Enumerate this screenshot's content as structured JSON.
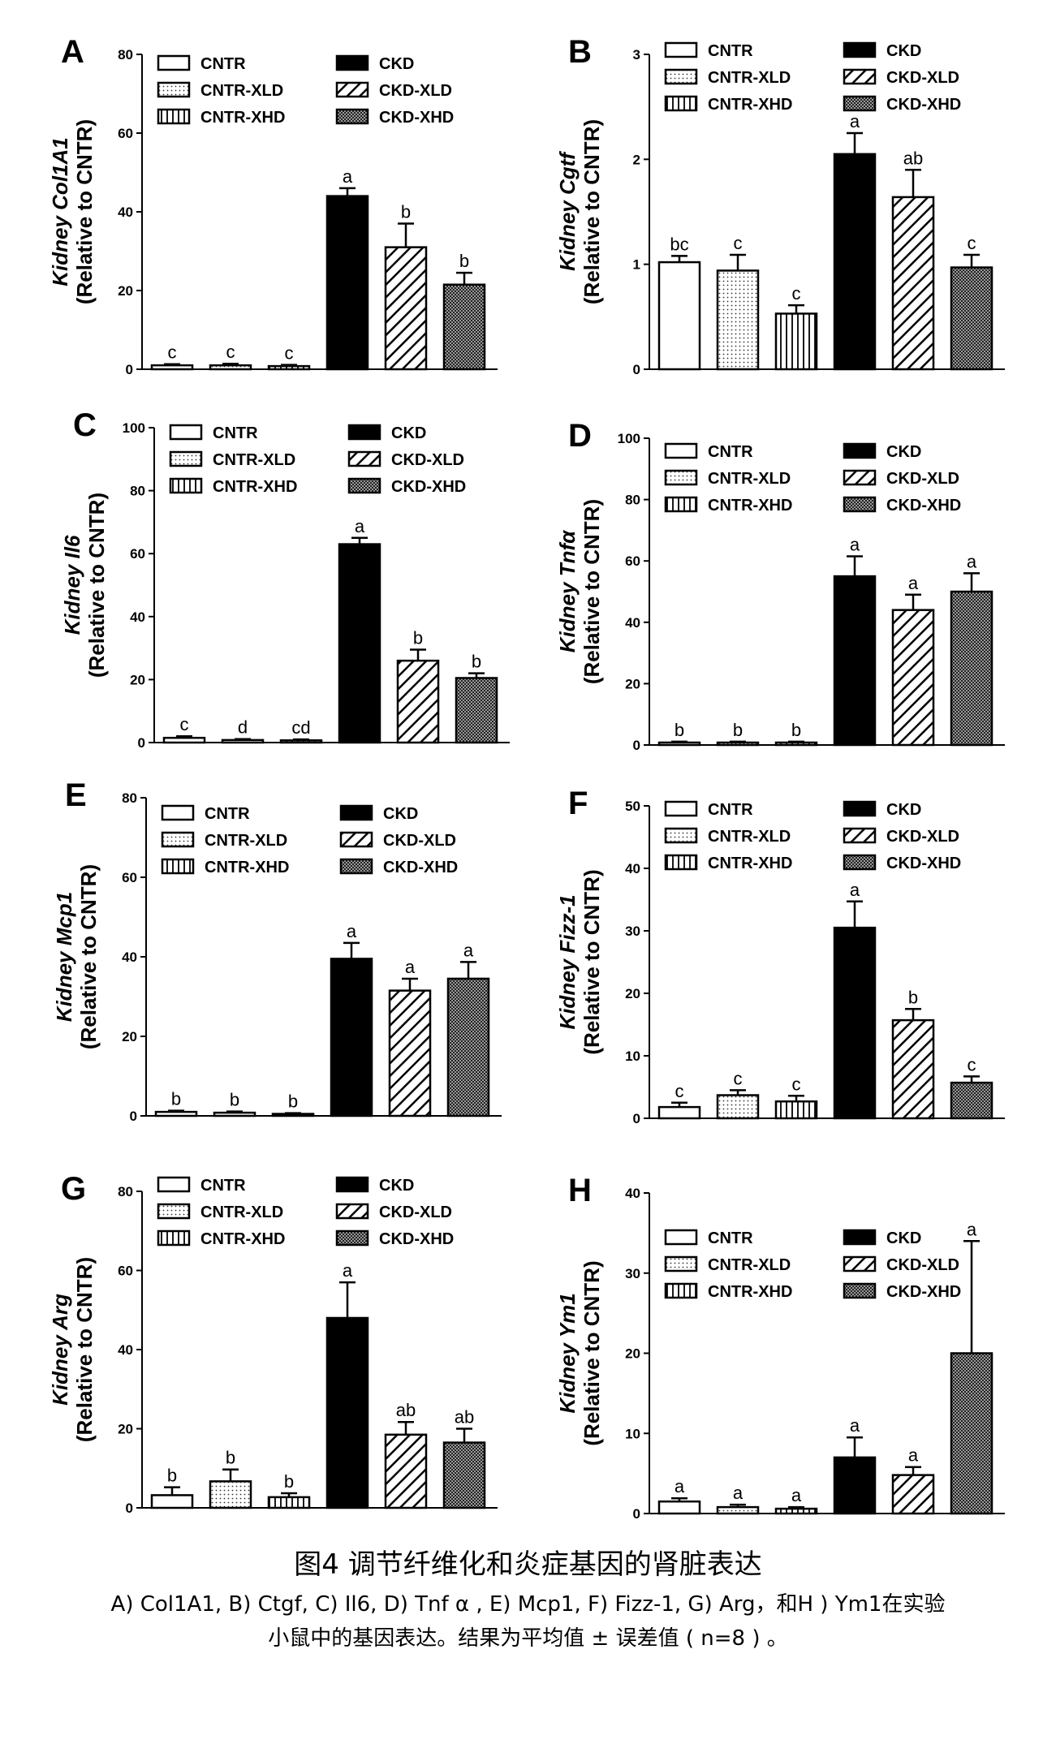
{
  "legend": {
    "series": [
      "CNTR",
      "CNTR-XLD",
      "CNTR-XHD",
      "CKD",
      "CKD-XLD",
      "CKD-XHD"
    ]
  },
  "caption": {
    "title": "图4 调节纤维化和炎症基因的肾脏表达",
    "line1": "A) Col1A1, B) Ctgf, C) Il6, D) Tnf α , E) Mcp1, F) Fizz-1, G) Arg，和H ) Ym1在实验",
    "line2": "小鼠中的基因表达。结果为平均值 ± 误差值 ( n=8 ) 。"
  },
  "chart_data": [
    {
      "type": "bar",
      "panel": "A",
      "ylabel_gene": "Col1A1",
      "ylabel": "(Relative to CNTR)",
      "ylim": [
        0,
        80
      ],
      "yticks": [
        0,
        20,
        40,
        60,
        80
      ],
      "categories": [
        "CNTR",
        "CNTR-XLD",
        "CNTR-XHD",
        "CKD",
        "CKD-XLD",
        "CKD-XHD"
      ],
      "values": [
        1,
        1,
        0.8,
        44,
        31,
        21.5
      ],
      "errors": [
        0.3,
        0.4,
        0.3,
        2,
        6,
        3
      ],
      "letters": [
        "c",
        "c",
        "c",
        "a",
        "b",
        "b"
      ]
    },
    {
      "type": "bar",
      "panel": "B",
      "ylabel_gene": "Cgtf",
      "ylabel": "(Relative to CNTR)",
      "ylim": [
        0,
        3
      ],
      "yticks": [
        0,
        1,
        2,
        3
      ],
      "categories": [
        "CNTR",
        "CNTR-XLD",
        "CNTR-XHD",
        "CKD",
        "CKD-XLD",
        "CKD-XHD"
      ],
      "values": [
        1.02,
        0.94,
        0.53,
        2.05,
        1.64,
        0.97
      ],
      "errors": [
        0.06,
        0.15,
        0.08,
        0.2,
        0.26,
        0.12
      ],
      "letters": [
        "bc",
        "c",
        "c",
        "a",
        "ab",
        "c"
      ]
    },
    {
      "type": "bar",
      "panel": "C",
      "ylabel_gene": "Il6",
      "ylabel": "(Relative to CNTR)",
      "ylim": [
        0,
        100
      ],
      "yticks": [
        0,
        20,
        40,
        60,
        80,
        100
      ],
      "categories": [
        "CNTR",
        "CNTR-XLD",
        "CNTR-XHD",
        "CKD",
        "CKD-XLD",
        "CKD-XHD"
      ],
      "values": [
        1.5,
        0.8,
        0.7,
        63,
        26,
        20.5
      ],
      "errors": [
        0.5,
        0.3,
        0.3,
        2,
        3.5,
        1.5
      ],
      "letters": [
        "c",
        "d",
        "cd",
        "a",
        "b",
        "b"
      ]
    },
    {
      "type": "bar",
      "panel": "D",
      "ylabel_gene": "Tnfα",
      "ylabel": "(Relative to CNTR)",
      "ylim": [
        0,
        100
      ],
      "yticks": [
        0,
        20,
        40,
        60,
        80,
        100
      ],
      "categories": [
        "CNTR",
        "CNTR-XLD",
        "CNTR-XHD",
        "CKD",
        "CKD-XLD",
        "CKD-XHD"
      ],
      "values": [
        0.8,
        0.8,
        0.8,
        55,
        44,
        50
      ],
      "errors": [
        0.3,
        0.3,
        0.3,
        6.5,
        5,
        6
      ],
      "letters": [
        "b",
        "b",
        "b",
        "a",
        "a",
        "a"
      ]
    },
    {
      "type": "bar",
      "panel": "E",
      "ylabel_gene": "Mcp1",
      "ylabel": "(Relative to CNTR)",
      "ylim": [
        0,
        80
      ],
      "yticks": [
        0,
        20,
        40,
        60,
        80
      ],
      "categories": [
        "CNTR",
        "CNTR-XLD",
        "CNTR-XHD",
        "CKD",
        "CKD-XLD",
        "CKD-XHD"
      ],
      "values": [
        1,
        0.8,
        0.5,
        39.5,
        31.5,
        34.5
      ],
      "errors": [
        0.3,
        0.3,
        0.2,
        4,
        3,
        4.2
      ],
      "letters": [
        "b",
        "b",
        "b",
        "a",
        "a",
        "a"
      ]
    },
    {
      "type": "bar",
      "panel": "F",
      "ylabel_gene": "Fizz-1",
      "ylabel": "(Relative to CNTR)",
      "ylim": [
        0,
        50
      ],
      "yticks": [
        0,
        10,
        20,
        30,
        40,
        50
      ],
      "categories": [
        "CNTR",
        "CNTR-XLD",
        "CNTR-XHD",
        "CKD",
        "CKD-XLD",
        "CKD-XHD"
      ],
      "values": [
        1.8,
        3.7,
        2.7,
        30.5,
        15.7,
        5.7
      ],
      "errors": [
        0.7,
        0.8,
        0.9,
        4.2,
        1.8,
        1
      ],
      "letters": [
        "c",
        "c",
        "c",
        "a",
        "b",
        "c"
      ]
    },
    {
      "type": "bar",
      "panel": "G",
      "ylabel_gene": "Arg",
      "ylabel": "(Relative to CNTR)",
      "ylim": [
        0,
        80
      ],
      "yticks": [
        0,
        20,
        40,
        60,
        80
      ],
      "categories": [
        "CNTR",
        "CNTR-XLD",
        "CNTR-XHD",
        "CKD",
        "CKD-XLD",
        "CKD-XHD"
      ],
      "values": [
        3.2,
        6.7,
        2.7,
        48,
        18.5,
        16.5
      ],
      "errors": [
        2,
        3,
        1,
        9,
        3.2,
        3.5
      ],
      "letters": [
        "b",
        "b",
        "b",
        "a",
        "ab",
        "ab"
      ]
    },
    {
      "type": "bar",
      "panel": "H",
      "ylabel_gene": "Ym1",
      "ylabel": "(Relative to CNTR)",
      "ylim": [
        0,
        40
      ],
      "yticks": [
        0,
        10,
        20,
        30,
        40
      ],
      "categories": [
        "CNTR",
        "CNTR-XLD",
        "CNTR-XHD",
        "CKD",
        "CKD-XLD",
        "CKD-XHD"
      ],
      "values": [
        1.5,
        0.8,
        0.6,
        7,
        4.8,
        20
      ],
      "errors": [
        0.4,
        0.3,
        0.2,
        2.5,
        1,
        14
      ],
      "letters": [
        "a",
        "a",
        "a",
        "a",
        "a",
        "a"
      ]
    }
  ]
}
